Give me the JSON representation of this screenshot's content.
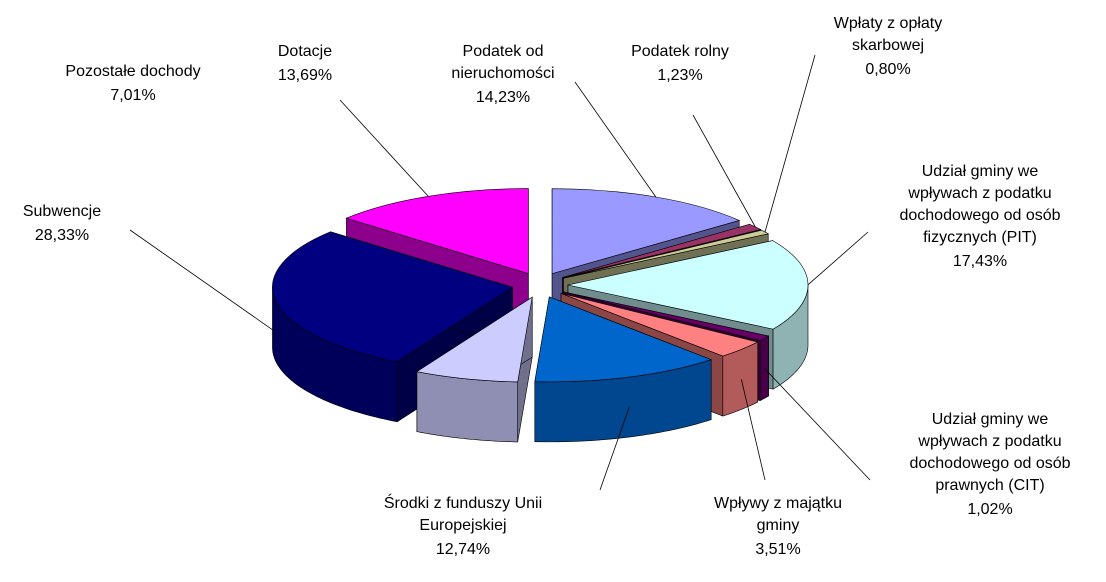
{
  "chart_data": {
    "type": "pie",
    "categories": [
      "Podatek od nieruchomości",
      "Podatek rolny",
      "Wpłaty z opłaty skarbowej",
      "Udział gminy we wpływach z podatku dochodowego od osób fizycznych (PIT)",
      "Udział gminy we wpływach z podatku dochodowego od osób prawnych (CIT)",
      "Wpływy z majątku gminy",
      "Środki z funduszy Unii Europejskiej",
      "Pozostałe dochody",
      "Subwencje",
      "Dotacje"
    ],
    "values": [
      14.23,
      1.23,
      0.8,
      17.43,
      1.02,
      3.51,
      12.74,
      7.01,
      28.33,
      13.69
    ],
    "value_labels": [
      "14,23%",
      "1,23%",
      "0,80%",
      "17,43%",
      "1,02%",
      "3,51%",
      "12,74%",
      "7,01%",
      "28,33%",
      "13,69%"
    ],
    "colors": [
      "#9999ff",
      "#993366",
      "#cccc99",
      "#ccffff",
      "#660066",
      "#ff8080",
      "#0066cc",
      "#ccccff",
      "#000080",
      "#ff00ff"
    ]
  }
}
